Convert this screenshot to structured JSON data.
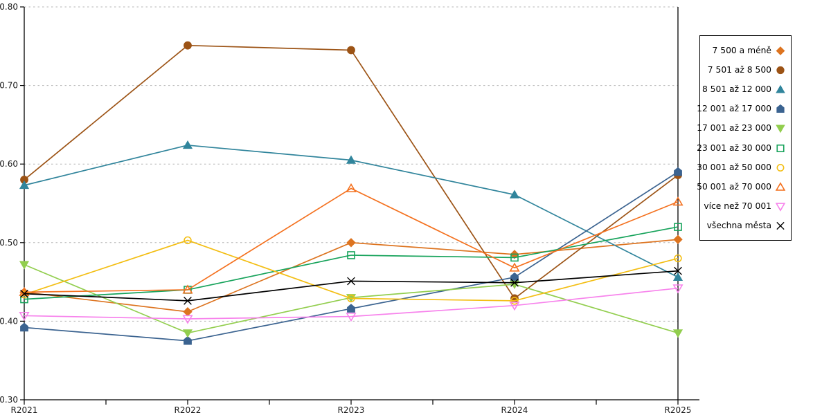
{
  "chart_data": {
    "type": "line",
    "categories": [
      "R2021",
      "R2022",
      "R2023",
      "R2024",
      "R2025"
    ],
    "ylim": [
      0.3,
      0.8
    ],
    "yticks": [
      0.3,
      0.4,
      0.5,
      0.6,
      0.7,
      0.8
    ],
    "grid": "horizontal-dashed",
    "legend_position": "right",
    "title": "",
    "xlabel": "",
    "ylabel": "",
    "series": [
      {
        "name": "7 500 a méně",
        "marker": "diamond",
        "fill": "filled",
        "color": "#dd7420",
        "values": [
          0.437,
          0.412,
          0.5,
          0.485,
          0.504
        ]
      },
      {
        "name": "7 501 až 8 500",
        "marker": "circle",
        "fill": "filled",
        "color": "#9c5315",
        "values": [
          0.58,
          0.751,
          0.745,
          0.429,
          0.586
        ]
      },
      {
        "name": "8 501 až 12 000",
        "marker": "triangle-up",
        "fill": "filled",
        "color": "#31859c",
        "values": [
          0.573,
          0.624,
          0.605,
          0.561,
          0.456
        ]
      },
      {
        "name": "12 001 až 17 000",
        "marker": "pentagon",
        "fill": "filled",
        "color": "#3b6390",
        "values": [
          0.392,
          0.375,
          0.416,
          0.456,
          0.59
        ]
      },
      {
        "name": "17 001 až 23 000",
        "marker": "triangle-down",
        "fill": "filled",
        "color": "#92ce4e",
        "values": [
          0.472,
          0.385,
          0.43,
          0.447,
          0.385
        ]
      },
      {
        "name": "23 001 až 30 000",
        "marker": "square",
        "fill": "open",
        "color": "#17a35b",
        "values": [
          0.428,
          0.44,
          0.484,
          0.481,
          0.52
        ]
      },
      {
        "name": "30 001 až 50 000",
        "marker": "circle",
        "fill": "open",
        "color": "#f3be13",
        "values": [
          0.434,
          0.503,
          0.429,
          0.426,
          0.48
        ]
      },
      {
        "name": "50 001 až 70 000",
        "marker": "triangle-up",
        "fill": "open",
        "color": "#f4711f",
        "values": [
          0.437,
          0.44,
          0.569,
          0.468,
          0.552
        ]
      },
      {
        "name": "více než 70 001",
        "marker": "triangle-down",
        "fill": "open",
        "color": "#f783ec",
        "values": [
          0.407,
          0.403,
          0.406,
          0.42,
          0.442
        ]
      },
      {
        "name": "všechna města",
        "marker": "x",
        "fill": "open",
        "color": "#000000",
        "values": [
          0.435,
          0.426,
          0.451,
          0.449,
          0.464
        ]
      }
    ]
  },
  "axis_style": {
    "tick_label_color": "#1a1a1a",
    "gridline_color": "#b3b3b3",
    "axis_color": "#000000"
  }
}
